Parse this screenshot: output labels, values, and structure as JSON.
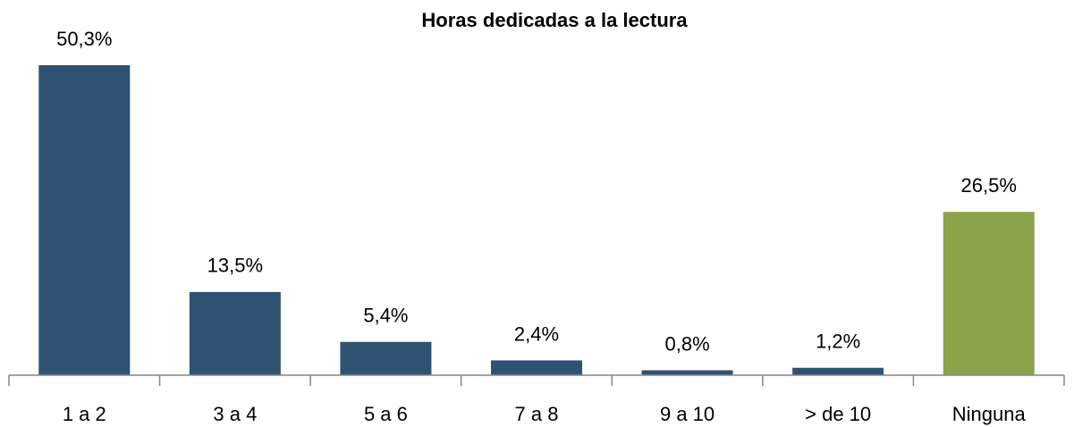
{
  "chart_data": {
    "type": "bar",
    "title": "Horas dedicadas a la lectura",
    "categories": [
      "1 a 2",
      "3 a 4",
      "5 a 6",
      "7 a 8",
      "9 a 10",
      "> de 10",
      "Ninguna"
    ],
    "values": [
      50.3,
      13.5,
      5.4,
      2.4,
      0.8,
      1.2,
      26.5
    ],
    "value_labels": [
      "50,3%",
      "13,5%",
      "5,4%",
      "2,4%",
      "0,8%",
      "1,2%",
      "26,5%"
    ],
    "colors": [
      "#2f5272",
      "#2f5272",
      "#2f5272",
      "#2f5272",
      "#2f5272",
      "#2f5272",
      "#8ba34a"
    ],
    "ylim": [
      0,
      55
    ]
  }
}
